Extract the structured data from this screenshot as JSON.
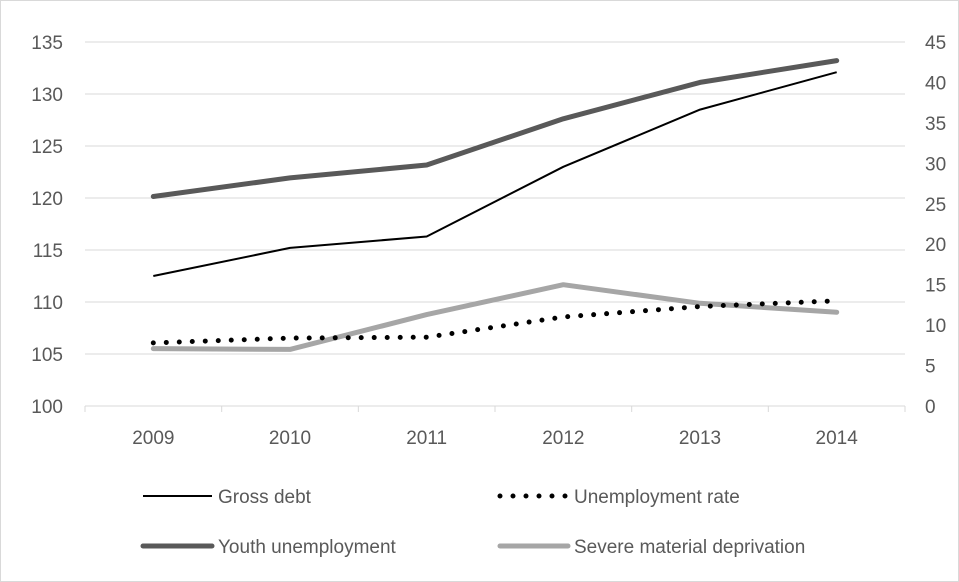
{
  "chart_data": {
    "type": "line",
    "title": "",
    "x": [
      "2009",
      "2010",
      "2011",
      "2012",
      "2013",
      "2014"
    ],
    "y_left": {
      "min": 100,
      "max": 135,
      "step": 5,
      "ticks": [
        "100",
        "105",
        "110",
        "115",
        "120",
        "125",
        "130",
        "135"
      ]
    },
    "y_right": {
      "min": 0,
      "max": 45,
      "step": 5,
      "ticks": [
        "0",
        "5",
        "10",
        "15",
        "20",
        "25",
        "30",
        "35",
        "40",
        "45"
      ]
    },
    "grid": true,
    "legend_position": "bottom",
    "series": [
      {
        "name": "Gross debt",
        "axis": "left",
        "values": [
          112.5,
          115.2,
          116.3,
          123.0,
          128.5,
          132.1
        ],
        "color": "#000000",
        "style": "solid"
      },
      {
        "name": "Unemployment rate",
        "axis": "right",
        "values": [
          7.8,
          8.4,
          8.5,
          11.0,
          12.3,
          13.0
        ],
        "color": "#000000",
        "style": "dotted"
      },
      {
        "name": "Youth unemployment",
        "axis": "right",
        "values": [
          25.9,
          28.2,
          29.8,
          35.5,
          40.0,
          42.7
        ],
        "color": "#595959",
        "style": "solid-thick"
      },
      {
        "name": "Severe material deprivation",
        "axis": "right",
        "values": [
          7.1,
          7.0,
          11.3,
          15.0,
          12.7,
          11.6
        ],
        "color": "#a6a6a6",
        "style": "solid-thick"
      }
    ]
  }
}
